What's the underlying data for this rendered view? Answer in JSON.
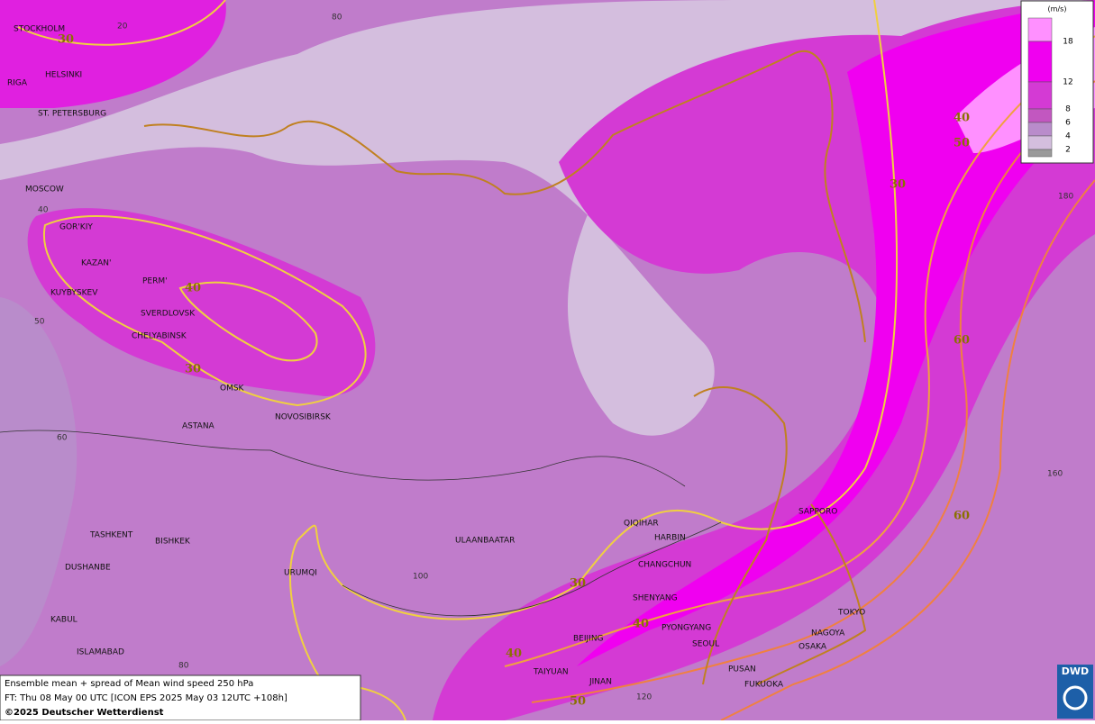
{
  "cities": [
    "STOCKHOLM",
    "HELSINKI",
    "RIGA",
    "ST. PETERSBURG",
    "MOSCOW",
    "GOR'KIY",
    "KAZAN'",
    "PERM'",
    "KUYBYSKEV",
    "SVERDLOVSK",
    "CHELYABINSK",
    "OMSK",
    "NOVOSIBIRSK",
    "ASTANA",
    "TASHKENT",
    "BISHKEK",
    "DUSHANBE",
    "URUMQI",
    "KABUL",
    "ISLAMABAD",
    "ULAANBAATAR",
    "QIQIHAR",
    "HARBIN",
    "CHANGCHUN",
    "SHENYANG",
    "PYONGYANG",
    "SEOUL",
    "BEIJING",
    "TAIYUAN",
    "JINAN",
    "PUSAN",
    "FUKUOKA",
    "SAPPORO",
    "TOKYO",
    "NAGOYA",
    "OSAKA"
  ],
  "grid_labels": [
    20,
    80,
    40,
    50,
    60,
    80,
    100,
    120,
    160,
    180
  ],
  "contour_labels": [
    30,
    40,
    50,
    30,
    40,
    30,
    60,
    60,
    30,
    40,
    40,
    50
  ],
  "legend": {
    "unit": "(m/s)",
    "labels": [
      18,
      12,
      8,
      6,
      4,
      2
    ],
    "colors": [
      "#ff90ff",
      "#f000f0",
      "#d43ad4",
      "#c257c0",
      "#b98ccb",
      "#d4bede",
      "#9a9a9a"
    ]
  },
  "footer": {
    "line1": "Ensemble mean + spread of Mean wind speed 250 hPa",
    "line2": "FT: Thu 08 May 00 UTC [ICON EPS 2025 May 03 12UTC +108h]",
    "line3": "©2025 Deutscher Wetterdienst"
  },
  "logo": "DWD"
}
